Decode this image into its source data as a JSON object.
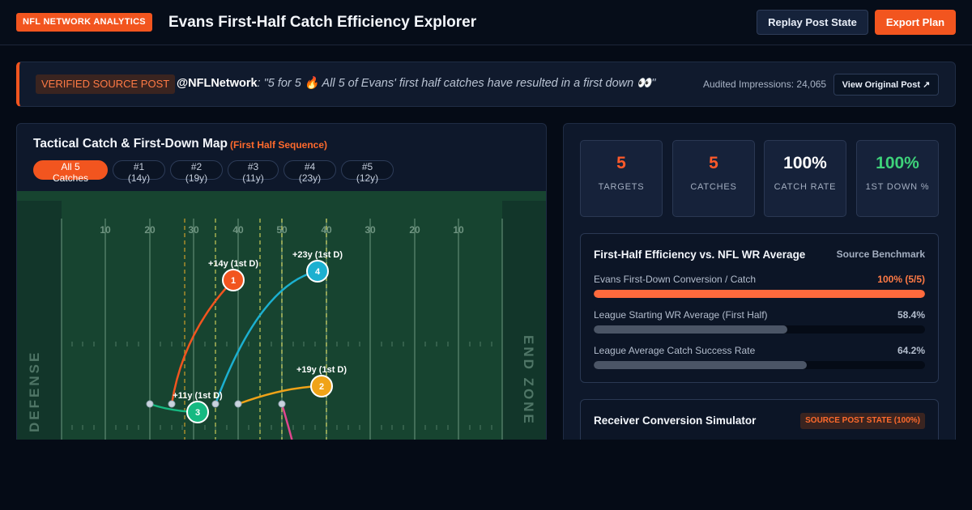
{
  "header": {
    "brand": "NFL NETWORK ANALYTICS",
    "title": "Evans First-Half Catch Efficiency Explorer",
    "replay_label": "Replay Post State",
    "export_label": "Export Plan"
  },
  "source_post": {
    "badge": "VERIFIED SOURCE POST",
    "handle": "@NFLNetwork",
    "quote": ": \"5 for 5 🔥 All 5 of Evans' first half catches have resulted in a first down 👀\"",
    "impressions": "Audited Impressions: 24,065",
    "view_label": "View Original Post ↗"
  },
  "map": {
    "title": "Tactical Catch & First-Down Map",
    "subtitle": "(First Half Sequence)",
    "filters": [
      "All 5 Catches",
      "#1 (14y)",
      "#2 (19y)",
      "#3 (11y)",
      "#4 (23y)",
      "#5 (12y)"
    ],
    "active_filter": 0,
    "yard_labels": [
      "10",
      "20",
      "30",
      "40",
      "50",
      "40",
      "30",
      "20",
      "10"
    ],
    "left_zone": "DEFENSE",
    "right_zone": "END ZONE",
    "catches": [
      {
        "id": "1",
        "label": "+14y (1st D)",
        "color": "#f2551f"
      },
      {
        "id": "2",
        "label": "+19y (1st D)",
        "color": "#f0a318"
      },
      {
        "id": "3",
        "label": "+11y (1st D)",
        "color": "#16b981"
      },
      {
        "id": "4",
        "label": "+23y (1st D)",
        "color": "#1cb0d0"
      },
      {
        "id": "5",
        "label": "",
        "color": "#e0468e"
      }
    ],
    "colors": {
      "field": "#174430",
      "endzone": "#12362a",
      "first_down_line": "#c7c95a",
      "los_line": "#d8a628"
    }
  },
  "stats": [
    {
      "value": "5",
      "label": "TARGETS",
      "color": "#ff5a2a"
    },
    {
      "value": "5",
      "label": "CATCHES",
      "color": "#ff5a2a"
    },
    {
      "value": "100%",
      "label": "CATCH RATE",
      "color": "#ffffff"
    },
    {
      "value": "100%",
      "label": "1ST DOWN %",
      "color": "#3ed27a"
    }
  ],
  "benchmark": {
    "title": "First-Half Efficiency vs. NFL WR Average",
    "source": "Source Benchmark",
    "rows": [
      {
        "label": "Evans First-Down Conversion / Catch",
        "value": "100% (5/5)",
        "pct": 100,
        "color": "#ff6a3d",
        "value_color": "#ff7a45"
      },
      {
        "label": "League Starting WR Average (First Half)",
        "value": "58.4%",
        "pct": 58.4,
        "color": "#4b5566",
        "value_color": "#b3bdcd"
      },
      {
        "label": "League Average Catch Success Rate",
        "value": "64.2%",
        "pct": 64.2,
        "color": "#4b5566",
        "value_color": "#b3bdcd"
      }
    ]
  },
  "simulator": {
    "title": "Receiver Conversion Simulator",
    "badge": "SOURCE POST STATE (100%)"
  }
}
